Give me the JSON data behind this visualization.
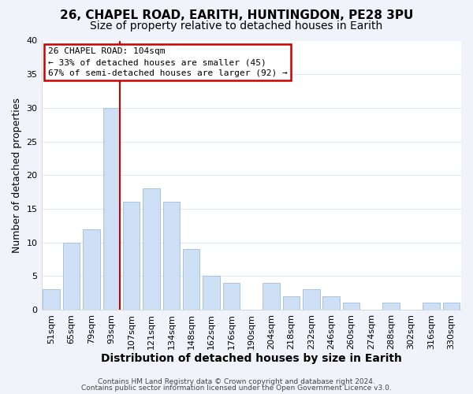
{
  "title1": "26, CHAPEL ROAD, EARITH, HUNTINGDON, PE28 3PU",
  "title2": "Size of property relative to detached houses in Earith",
  "xlabel": "Distribution of detached houses by size in Earith",
  "ylabel": "Number of detached properties",
  "bar_labels": [
    "51sqm",
    "65sqm",
    "79sqm",
    "93sqm",
    "107sqm",
    "121sqm",
    "134sqm",
    "148sqm",
    "162sqm",
    "176sqm",
    "190sqm",
    "204sqm",
    "218sqm",
    "232sqm",
    "246sqm",
    "260sqm",
    "274sqm",
    "288sqm",
    "302sqm",
    "316sqm",
    "330sqm"
  ],
  "bar_values": [
    3,
    10,
    12,
    30,
    16,
    18,
    16,
    9,
    5,
    4,
    0,
    4,
    2,
    3,
    2,
    1,
    0,
    1,
    0,
    1,
    1
  ],
  "bar_color": "#ccdff5",
  "bar_edge_color": "#a8c4e0",
  "red_line_after_index": 3,
  "ylim": [
    0,
    40
  ],
  "yticks": [
    0,
    5,
    10,
    15,
    20,
    25,
    30,
    35,
    40
  ],
  "annotation_lines": [
    "26 CHAPEL ROAD: 104sqm",
    "← 33% of detached houses are smaller (45)",
    "67% of semi-detached houses are larger (92) →"
  ],
  "annotation_box_color": "#ffffff",
  "annotation_box_edge": "#cc0000",
  "footer_line1": "Contains HM Land Registry data © Crown copyright and database right 2024.",
  "footer_line2": "Contains public sector information licensed under the Open Government Licence v3.0.",
  "bg_color": "#f0f4fa",
  "plot_bg_color": "#ffffff",
  "grid_color": "#e0e8f0",
  "title_fontsize": 11,
  "subtitle_fontsize": 10,
  "tick_fontsize": 8,
  "ylabel_fontsize": 9,
  "xlabel_fontsize": 10
}
